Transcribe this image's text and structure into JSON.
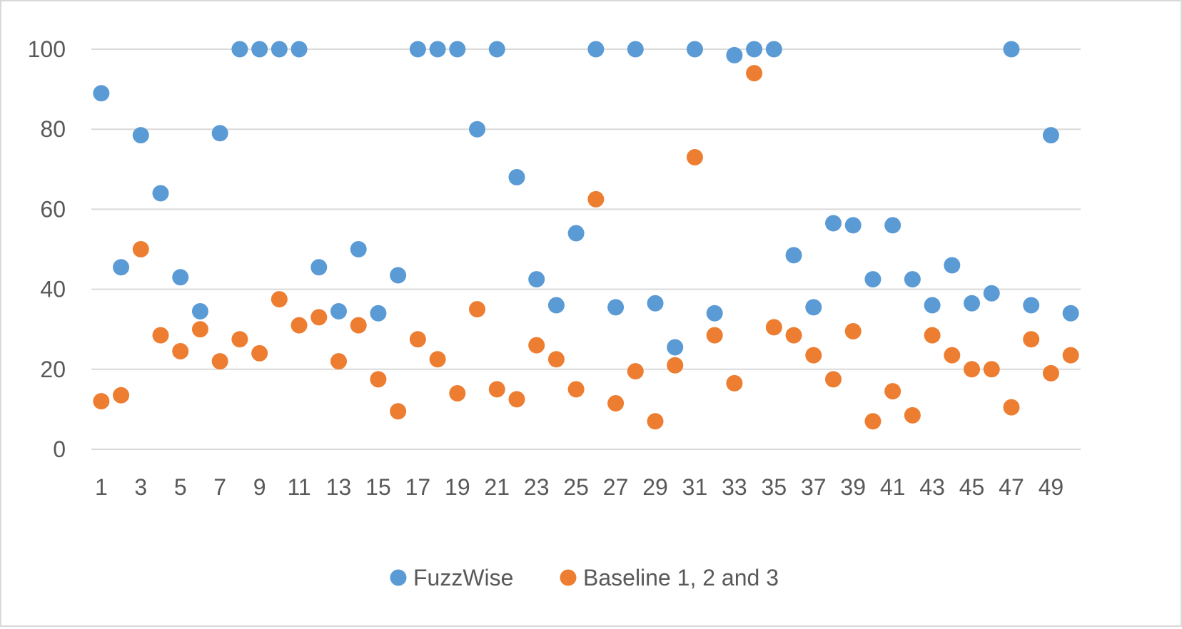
{
  "chart_data": {
    "type": "scatter",
    "title": "",
    "xlabel": "",
    "ylabel": "",
    "x": [
      1,
      2,
      3,
      4,
      5,
      6,
      7,
      8,
      9,
      10,
      11,
      12,
      13,
      14,
      15,
      16,
      17,
      18,
      19,
      20,
      21,
      22,
      23,
      24,
      25,
      26,
      27,
      28,
      29,
      30,
      31,
      32,
      33,
      34,
      35,
      36,
      37,
      38,
      39,
      40,
      41,
      42,
      43,
      44,
      45,
      46,
      47,
      48,
      49,
      50
    ],
    "xlim": [
      1,
      50
    ],
    "ylim": [
      0,
      100
    ],
    "x_tick_labels": [
      "1",
      "3",
      "5",
      "7",
      "9",
      "11",
      "13",
      "15",
      "17",
      "19",
      "21",
      "23",
      "25",
      "27",
      "29",
      "31",
      "33",
      "35",
      "37",
      "39",
      "41",
      "43",
      "45",
      "47",
      "49"
    ],
    "y_tick_labels": [
      "0",
      "20",
      "40",
      "60",
      "80",
      "100"
    ],
    "grid": true,
    "legend_position": "bottom",
    "series": [
      {
        "name": "FuzzWise",
        "color": "#5b9bd5",
        "values": [
          89,
          45.5,
          78.5,
          64,
          43,
          34.5,
          79,
          100,
          100,
          100,
          100,
          45.5,
          34.5,
          50,
          34,
          43.5,
          100,
          100,
          100,
          80,
          100,
          68,
          42.5,
          36,
          54,
          100,
          35.5,
          100,
          36.5,
          25.5,
          100,
          34,
          98.5,
          100,
          100,
          48.5,
          35.5,
          56.5,
          56,
          42.5,
          56,
          42.5,
          36,
          46,
          36.5,
          39,
          100,
          36,
          78.5,
          34
        ]
      },
      {
        "name": "Baseline 1, 2 and 3",
        "color": "#ed7d31",
        "values": [
          12,
          13.5,
          50,
          28.5,
          24.5,
          30,
          22,
          27.5,
          24,
          37.5,
          31,
          33,
          22,
          31,
          17.5,
          9.5,
          27.5,
          22.5,
          14,
          35,
          15,
          12.5,
          26,
          22.5,
          15,
          62.5,
          11.5,
          19.5,
          7,
          21,
          73,
          28.5,
          16.5,
          94,
          30.5,
          28.5,
          23.5,
          17.5,
          29.5,
          7,
          14.5,
          8.5,
          28.5,
          23.5,
          20,
          20,
          10.5,
          27.5,
          19,
          23.5
        ]
      }
    ]
  }
}
